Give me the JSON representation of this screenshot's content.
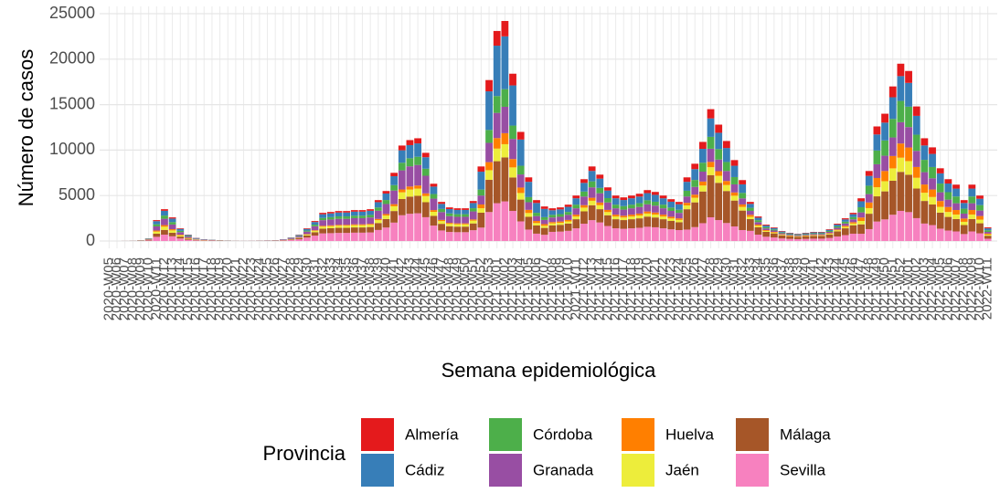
{
  "chart_data": {
    "type": "stacked_bar",
    "x_label": "Semana epidemiológica",
    "y_label": "Número de casos",
    "legend_title": "Provincia",
    "ylim": [
      0,
      25000
    ],
    "yticks": [
      0,
      5000,
      10000,
      15000,
      20000,
      25000
    ],
    "grid": true,
    "legend_position": "bottom",
    "categories": [
      "2020-W05",
      "2020-W06",
      "2020-W07",
      "2020-W08",
      "2020-W09",
      "2020-W10",
      "2020-W11",
      "2020-W12",
      "2020-W13",
      "2020-W14",
      "2020-W15",
      "2020-W16",
      "2020-W17",
      "2020-W18",
      "2020-W19",
      "2020-W20",
      "2020-W21",
      "2020-W22",
      "2020-W23",
      "2020-W24",
      "2020-W25",
      "2020-W26",
      "2020-W27",
      "2020-W28",
      "2020-W29",
      "2020-W30",
      "2020-W31",
      "2020-W32",
      "2020-W33",
      "2020-W34",
      "2020-W35",
      "2020-W36",
      "2020-W37",
      "2020-W38",
      "2020-W39",
      "2020-W40",
      "2020-W41",
      "2020-W42",
      "2020-W43",
      "2020-W44",
      "2020-W45",
      "2020-W46",
      "2020-W47",
      "2020-W48",
      "2020-W49",
      "2020-W50",
      "2020-W51",
      "2020-W52",
      "2020-W53",
      "2021-W01",
      "2021-W02",
      "2021-W03",
      "2021-W04",
      "2021-W05",
      "2021-W06",
      "2021-W07",
      "2021-W08",
      "2021-W09",
      "2021-W10",
      "2021-W11",
      "2021-W12",
      "2021-W13",
      "2021-W14",
      "2021-W15",
      "2021-W16",
      "2021-W17",
      "2021-W18",
      "2021-W19",
      "2021-W20",
      "2021-W21",
      "2021-W22",
      "2021-W23",
      "2021-W24",
      "2021-W25",
      "2021-W26",
      "2021-W27",
      "2021-W28",
      "2021-W29",
      "2021-W30",
      "2021-W31",
      "2021-W32",
      "2021-W33",
      "2021-W34",
      "2021-W35",
      "2021-W36",
      "2021-W37",
      "2021-W38",
      "2021-W39",
      "2021-W40",
      "2021-W41",
      "2021-W42",
      "2021-W43",
      "2021-W44",
      "2021-W45",
      "2021-W46",
      "2021-W47",
      "2021-W48",
      "2021-W49",
      "2021-W50",
      "2021-W51",
      "2021-W52",
      "2022-W01",
      "2022-W02",
      "2022-W03",
      "2022-W04",
      "2022-W05",
      "2022-W06",
      "2022-W07",
      "2022-W08",
      "2022-W09",
      "2022-W10",
      "2022-W11"
    ],
    "series": [
      {
        "name": "Almería",
        "color": "#e41a1c",
        "values": [
          0,
          0,
          1,
          2,
          5,
          15,
          115,
          175,
          130,
          70,
          35,
          18,
          10,
          8,
          5,
          3,
          2,
          1,
          2,
          3,
          4,
          5,
          10,
          20,
          35,
          70,
          110,
          155,
          160,
          165,
          165,
          170,
          170,
          175,
          225,
          275,
          375,
          525,
          555,
          565,
          485,
          315,
          215,
          185,
          180,
          180,
          220,
          574,
          1239,
          1617,
          1694,
          1288,
          840,
          490,
          315,
          266,
          216,
          222,
          240,
          300,
          408,
          492,
          438,
          354,
          300,
          288,
          300,
          312,
          336,
          324,
          300,
          276,
          258,
          490,
          595,
          763,
          1015,
          896,
          770,
          623,
          469,
          215,
          135,
          90,
          75,
          55,
          45,
          40,
          45,
          50,
          50,
          65,
          95,
          125,
          155,
          329,
          539,
          882,
          980,
          1190,
          1365,
          1309,
          1036,
          791,
          721,
          560,
          476,
          434,
          315,
          434,
          350,
          105
        ]
      },
      {
        "name": "Cádiz",
        "color": "#377eb8",
        "values": [
          0,
          0,
          2,
          5,
          15,
          45,
          345,
          525,
          390,
          210,
          105,
          53,
          30,
          23,
          15,
          9,
          5,
          3,
          4,
          7,
          9,
          13,
          26,
          52,
          91,
          182,
          286,
          403,
          416,
          429,
          429,
          442,
          442,
          455,
          585,
          715,
          975,
          1365,
          1443,
          1469,
          1261,
          819,
          559,
          481,
          468,
          468,
          572,
          1968,
          4248,
          5544,
          5808,
          4416,
          2880,
          1680,
          1080,
          912,
          504,
          518,
          560,
          700,
          952,
          1148,
          1022,
          826,
          700,
          672,
          700,
          728,
          784,
          756,
          700,
          644,
          602,
          980,
          1190,
          1526,
          2030,
          1792,
          1540,
          1246,
          938,
          430,
          270,
          180,
          150,
          110,
          90,
          80,
          90,
          100,
          100,
          130,
          190,
          250,
          310,
          658,
          1078,
          1764,
          1960,
          2380,
          2730,
          2618,
          2072,
          1582,
          1442,
          1120,
          952,
          868,
          630,
          868,
          700,
          210
        ]
      },
      {
        "name": "Córdoba",
        "color": "#4daf4a",
        "values": [
          0,
          0,
          1,
          3,
          10,
          30,
          230,
          350,
          260,
          140,
          70,
          35,
          20,
          15,
          10,
          6,
          3,
          2,
          2,
          4,
          6,
          8,
          16,
          32,
          56,
          112,
          176,
          248,
          256,
          264,
          264,
          272,
          272,
          280,
          360,
          440,
          600,
          840,
          888,
          904,
          776,
          504,
          344,
          296,
          288,
          288,
          352,
          656,
          1416,
          1848,
          1936,
          1472,
          960,
          560,
          360,
          304,
          288,
          296,
          320,
          400,
          544,
          656,
          584,
          472,
          400,
          384,
          400,
          416,
          448,
          432,
          400,
          368,
          344,
          630,
          765,
          981,
          1305,
          1152,
          990,
          801,
          603,
          344,
          216,
          144,
          120,
          88,
          72,
          64,
          72,
          80,
          80,
          104,
          152,
          200,
          248,
          564,
          924,
          1512,
          1680,
          2040,
          2340,
          2244,
          1776,
          1356,
          1236,
          960,
          816,
          744,
          540,
          744,
          600,
          180
        ]
      },
      {
        "name": "Granada",
        "color": "#984ea3",
        "values": [
          0,
          0,
          2,
          6,
          20,
          60,
          460,
          700,
          520,
          280,
          140,
          70,
          40,
          30,
          20,
          12,
          6,
          4,
          6,
          10,
          14,
          20,
          40,
          80,
          140,
          280,
          440,
          620,
          640,
          660,
          660,
          680,
          680,
          700,
          900,
          1100,
          1500,
          2100,
          2220,
          2260,
          1940,
          1260,
          860,
          740,
          720,
          720,
          880,
          984,
          2124,
          2772,
          2904,
          2208,
          1440,
          840,
          540,
          456,
          504,
          518,
          560,
          700,
          952,
          1148,
          1022,
          826,
          700,
          672,
          700,
          728,
          784,
          756,
          700,
          644,
          602,
          700,
          850,
          1090,
          1450,
          1280,
          1100,
          890,
          670,
          430,
          270,
          180,
          150,
          110,
          90,
          80,
          90,
          100,
          100,
          130,
          190,
          250,
          310,
          564,
          924,
          1512,
          1680,
          2040,
          2340,
          2244,
          1776,
          1356,
          1236,
          960,
          816,
          744,
          540,
          744,
          600,
          180
        ]
      },
      {
        "name": "Huelva",
        "color": "#ff7f00",
        "values": [
          0,
          0,
          1,
          2,
          5,
          15,
          115,
          175,
          130,
          70,
          35,
          18,
          10,
          8,
          5,
          3,
          2,
          1,
          1,
          2,
          2,
          3,
          6,
          12,
          21,
          42,
          66,
          93,
          96,
          99,
          99,
          102,
          102,
          105,
          135,
          165,
          225,
          315,
          333,
          339,
          291,
          189,
          129,
          111,
          108,
          108,
          132,
          410,
          885,
          1155,
          1210,
          920,
          600,
          350,
          225,
          190,
          144,
          148,
          160,
          200,
          272,
          328,
          292,
          236,
          200,
          192,
          200,
          208,
          224,
          216,
          200,
          184,
          172,
          280,
          340,
          436,
          580,
          512,
          440,
          356,
          268,
          215,
          135,
          90,
          75,
          55,
          45,
          40,
          45,
          50,
          50,
          65,
          95,
          125,
          155,
          376,
          616,
          1008,
          1120,
          1360,
          1560,
          1496,
          1184,
          904,
          824,
          640,
          544,
          496,
          360,
          496,
          400,
          120
        ]
      },
      {
        "name": "Jaén",
        "color": "#eded3b",
        "values": [
          0,
          0,
          1,
          3,
          10,
          30,
          230,
          350,
          260,
          140,
          70,
          35,
          20,
          15,
          10,
          6,
          3,
          1,
          2,
          4,
          5,
          7,
          14,
          28,
          49,
          98,
          154,
          217,
          224,
          231,
          231,
          238,
          238,
          245,
          315,
          385,
          525,
          735,
          777,
          791,
          679,
          441,
          301,
          259,
          252,
          252,
          308,
          492,
          1062,
          1386,
          1452,
          1104,
          720,
          420,
          270,
          228,
          216,
          222,
          240,
          300,
          408,
          492,
          438,
          354,
          300,
          288,
          300,
          312,
          336,
          324,
          300,
          276,
          258,
          420,
          510,
          654,
          870,
          768,
          660,
          534,
          402,
          258,
          162,
          108,
          90,
          66,
          54,
          48,
          54,
          60,
          60,
          78,
          114,
          150,
          186,
          376,
          616,
          1008,
          1120,
          1360,
          1560,
          1496,
          1184,
          904,
          824,
          640,
          544,
          496,
          360,
          496,
          400,
          120
        ]
      },
      {
        "name": "Málaga",
        "color": "#a65628",
        "values": [
          0,
          0,
          2,
          5,
          15,
          45,
          345,
          525,
          390,
          210,
          105,
          53,
          30,
          23,
          15,
          9,
          5,
          3,
          5,
          9,
          12,
          17,
          34,
          68,
          119,
          238,
          374,
          527,
          544,
          561,
          561,
          578,
          578,
          595,
          765,
          935,
          1275,
          1785,
          1887,
          1921,
          1649,
          1071,
          731,
          629,
          612,
          612,
          748,
          1640,
          3540,
          4620,
          4840,
          3680,
          2400,
          1400,
          900,
          760,
          720,
          740,
          800,
          1000,
          1360,
          1640,
          1460,
          1180,
          1000,
          960,
          1000,
          1040,
          1120,
          1080,
          1000,
          920,
          860,
          2240,
          2720,
          3488,
          4640,
          4096,
          3520,
          2848,
          2144,
          1290,
          810,
          540,
          450,
          330,
          270,
          240,
          270,
          300,
          300,
          390,
          570,
          750,
          930,
          1034,
          1694,
          2772,
          3080,
          3740,
          4290,
          4114,
          3256,
          2486,
          2266,
          1760,
          1496,
          1364,
          990,
          1364,
          1100,
          330
        ]
      },
      {
        "name": "Sevilla",
        "color": "#f781bf",
        "values": [
          0,
          0,
          2,
          6,
          20,
          60,
          460,
          700,
          520,
          280,
          140,
          70,
          40,
          30,
          20,
          12,
          6,
          5,
          8,
          14,
          19,
          27,
          54,
          108,
          189,
          378,
          594,
          837,
          864,
          891,
          891,
          918,
          918,
          945,
          1215,
          1485,
          2025,
          2835,
          2997,
          3051,
          2619,
          1701,
          1161,
          999,
          972,
          972,
          1188,
          1476,
          3186,
          4158,
          4356,
          3312,
          2160,
          1260,
          810,
          684,
          1008,
          1036,
          1120,
          1400,
          1904,
          2296,
          2044,
          1652,
          1400,
          1344,
          1400,
          1456,
          1568,
          1512,
          1400,
          1288,
          1204,
          1260,
          1530,
          1962,
          2610,
          2304,
          1980,
          1602,
          1206,
          1118,
          702,
          468,
          390,
          286,
          234,
          208,
          234,
          260,
          260,
          338,
          494,
          650,
          806,
          799,
          1309,
          2142,
          2380,
          2890,
          3315,
          3179,
          2516,
          1921,
          1751,
          1360,
          1156,
          1054,
          765,
          1054,
          850,
          255
        ]
      }
    ]
  }
}
